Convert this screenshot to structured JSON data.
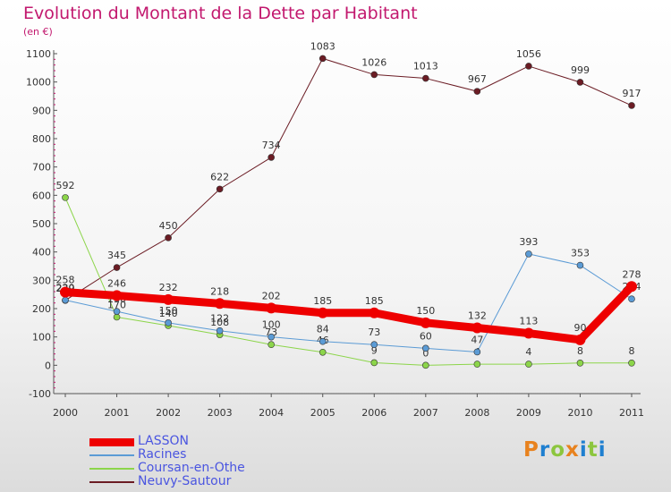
{
  "title": "Evolution du Montant de la Dette par Habitant",
  "unit_label": "(en €)",
  "logo": {
    "letters": [
      "P",
      "r",
      "o",
      "x",
      "i",
      "t",
      "i"
    ],
    "colors": [
      "#e8821e",
      "#1e7fd0",
      "#8cc63e",
      "#e8821e",
      "#1e7fd0",
      "#8cc63e",
      "#1e7fd0"
    ]
  },
  "chart_data": {
    "type": "line",
    "title": "Evolution du Montant de la Dette par Habitant",
    "ylabel": "(en €)",
    "xlabel": "",
    "categories": [
      "2000",
      "2001",
      "2002",
      "2003",
      "2004",
      "2005",
      "2006",
      "2007",
      "2008",
      "2009",
      "2010",
      "2011"
    ],
    "ylim": [
      -100,
      1100
    ],
    "yticks": [
      "-100",
      "0",
      "100",
      "200",
      "300",
      "400",
      "500",
      "600",
      "700",
      "800",
      "900",
      "1000",
      "1100"
    ],
    "grid": false,
    "legend_position": "bottom-left",
    "series": [
      {
        "name": "Neuvy-Sautour",
        "color": "#6b1c24",
        "width": 1,
        "values": [
          229,
          345,
          450,
          622,
          734,
          1083,
          1026,
          1013,
          967,
          1056,
          999,
          917
        ],
        "labels": [
          "229",
          "345",
          "450",
          "622",
          "734",
          "1083",
          "1026",
          "1013",
          "967",
          "1056",
          "999",
          "917"
        ]
      },
      {
        "name": "Coursan-en-Othe",
        "color": "#8cd54a",
        "width": 1,
        "values": [
          592,
          170,
          140,
          108,
          73,
          46,
          9,
          0,
          4,
          4,
          8,
          8
        ],
        "labels": [
          "592",
          "170",
          "140",
          "108",
          "73",
          "46",
          "9",
          "0",
          "4",
          "4",
          "8",
          "8"
        ]
      },
      {
        "name": "Racines",
        "color": "#5b9bd5",
        "width": 1,
        "values": [
          230,
          190,
          150,
          122,
          100,
          84,
          73,
          60,
          47,
          393,
          353,
          234
        ],
        "labels": [
          "230",
          "190",
          "150",
          "122",
          "100",
          "84",
          "73",
          "60",
          "47",
          "393",
          "353",
          "234"
        ]
      },
      {
        "name": "LASSON",
        "color": "#ee0000",
        "width": 9,
        "values": [
          258,
          246,
          232,
          218,
          202,
          185,
          185,
          150,
          132,
          113,
          90,
          278
        ],
        "labels": [
          "258",
          "246",
          "232",
          "218",
          "202",
          "185",
          "185",
          "150",
          "132",
          "113",
          "90",
          "278"
        ]
      }
    ],
    "legend_order": [
      "LASSON",
      "Racines",
      "Coursan-en-Othe",
      "Neuvy-Sautour"
    ]
  }
}
